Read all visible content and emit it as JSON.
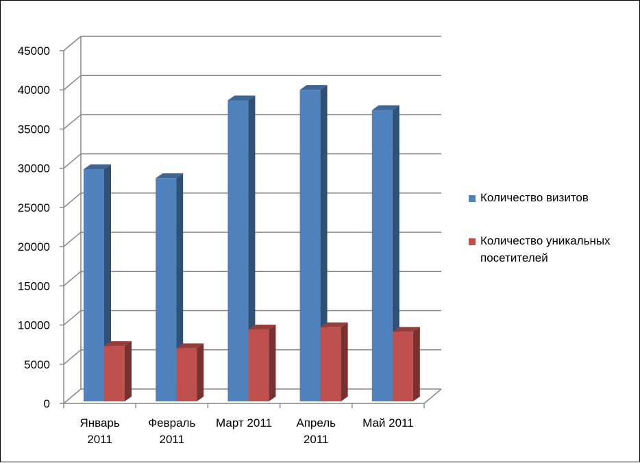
{
  "chart_data": {
    "type": "bar",
    "title": "",
    "xlabel": "",
    "ylabel": "",
    "ylim": [
      0,
      45000
    ],
    "y_ticks": [
      "0",
      "5000",
      "10000",
      "15000",
      "20000",
      "25000",
      "30000",
      "35000",
      "40000",
      "45000"
    ],
    "grid": true,
    "legend_position": "right",
    "categories": [
      [
        "Январь",
        "2011"
      ],
      [
        "Февраль",
        "2011"
      ],
      [
        "Март 2011"
      ],
      [
        "Апрель",
        "2011"
      ],
      [
        "Май 2011"
      ]
    ],
    "series": [
      {
        "name": [
          "Количество визитов"
        ],
        "color": "#4F81BD",
        "values": [
          31000,
          29800,
          40200,
          41600,
          38900
        ]
      },
      {
        "name": [
          "Количество уникальных",
          "посетителей"
        ],
        "color": "#C0504D",
        "values": [
          7400,
          7100,
          9600,
          9900,
          9300
        ]
      }
    ]
  }
}
